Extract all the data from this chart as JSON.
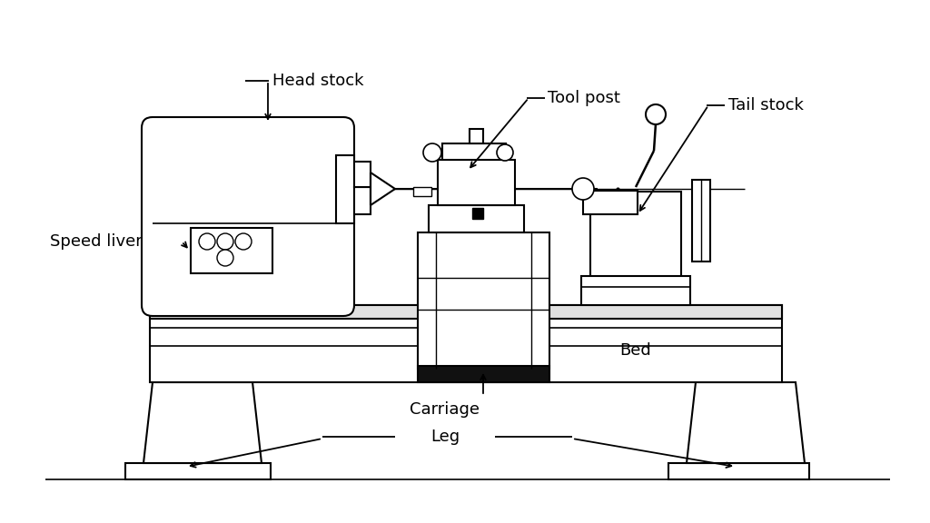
{
  "bg_color": "#ffffff",
  "line_color": "#000000",
  "lw": 1.5,
  "labels": {
    "head_stock": "Head stock",
    "tool_post": "Tool post",
    "tail_stock": "Tail stock",
    "speed_liver": "Speed liver",
    "carriage": "Carriage",
    "bed": "Bed",
    "leg": "Leg"
  }
}
